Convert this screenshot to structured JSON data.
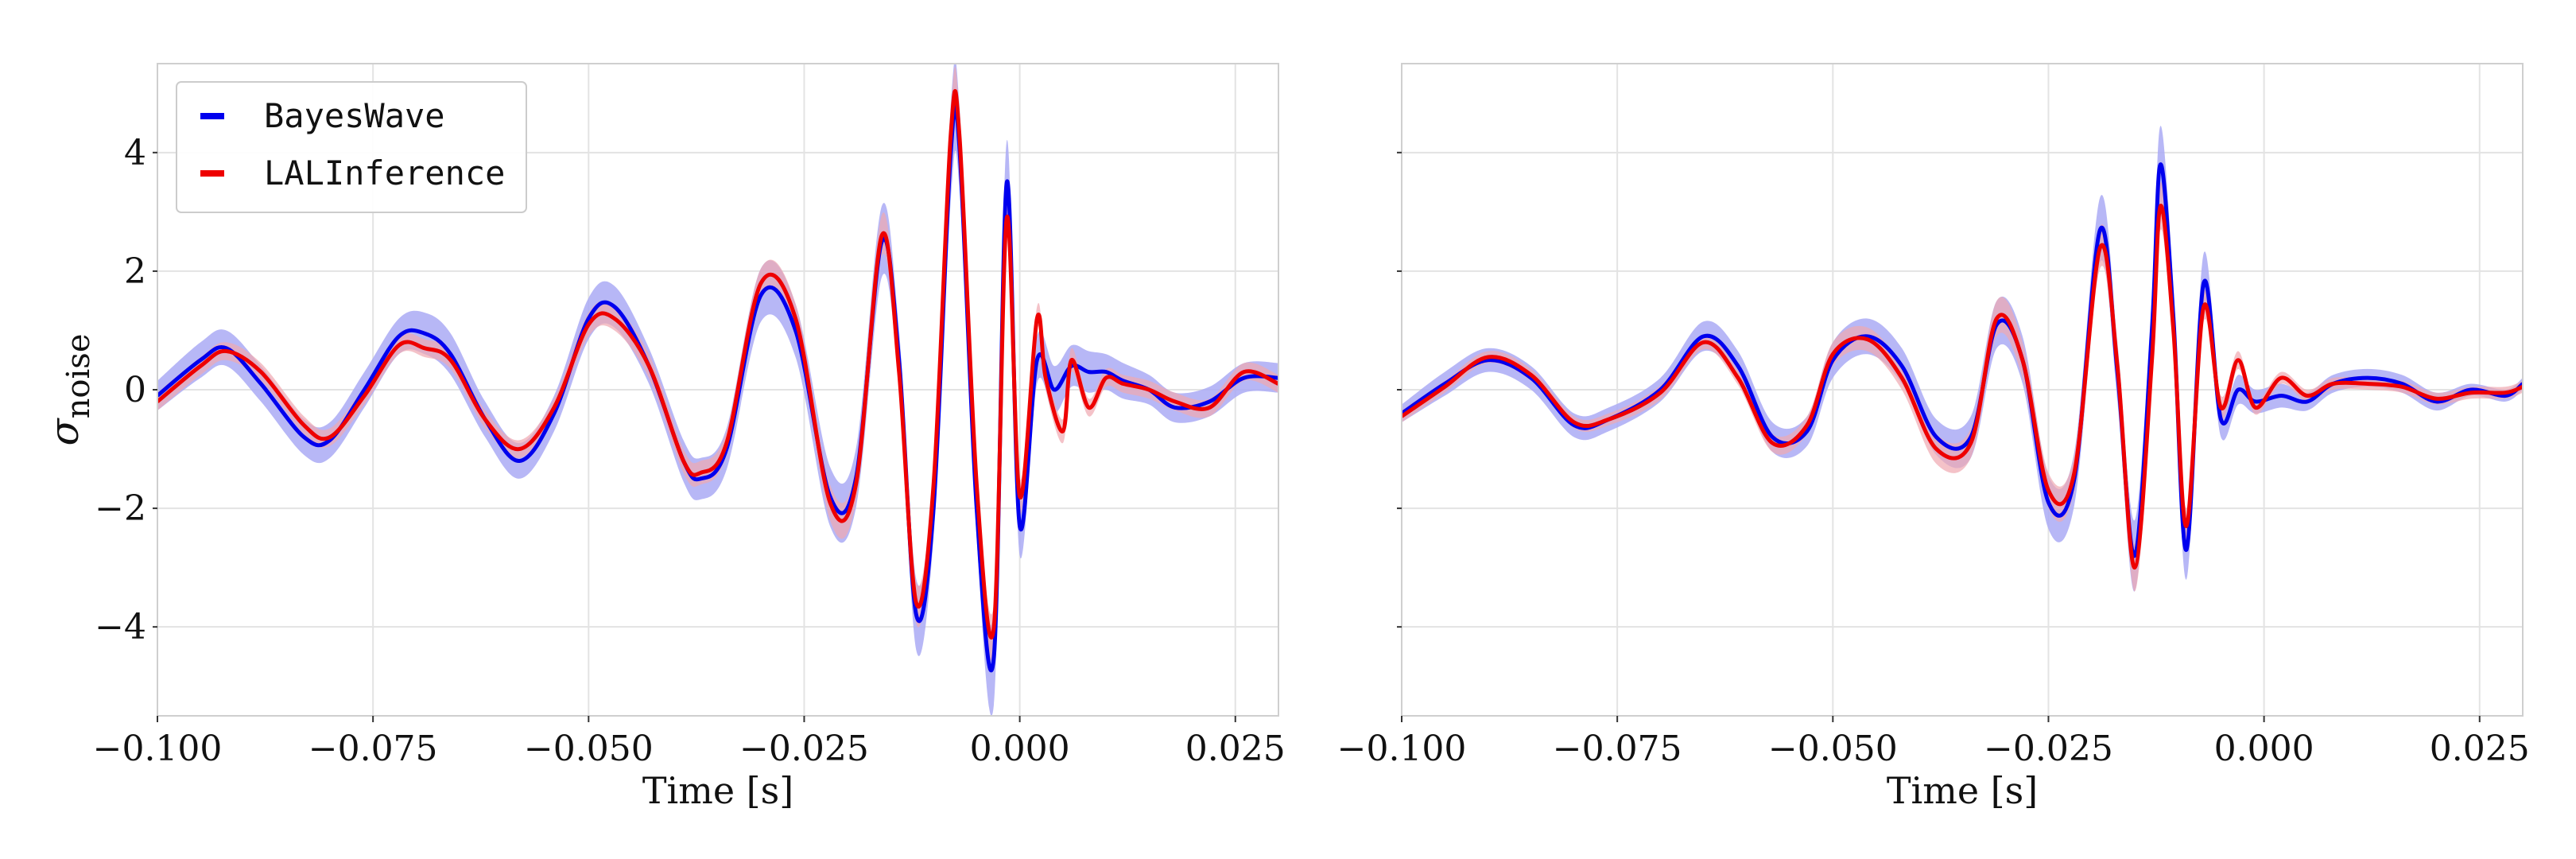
{
  "colors": {
    "bayeswave": "#0000ee",
    "bayeswave_band": "#aaaaf5",
    "lalinference": "#ee0000",
    "lalinference_band": "#f0a8b0"
  },
  "chart_data": [
    {
      "type": "line",
      "panel": "left",
      "xlabel": "Time [s]",
      "ylabel": "σnoise",
      "xlim": [
        -0.1,
        0.03
      ],
      "ylim": [
        -5.5,
        5.5
      ],
      "xticks": [
        -0.1,
        -0.075,
        -0.05,
        -0.025,
        0.0,
        0.025
      ],
      "xticklabels": [
        "−0.100",
        "−0.075",
        "−0.050",
        "−0.025",
        "0.000",
        "0.025"
      ],
      "yticks": [
        -4,
        -2,
        0,
        2,
        4
      ],
      "yticklabels": [
        "−4",
        "−2",
        "0",
        "2",
        "4"
      ],
      "grid": true,
      "legend": {
        "placement": "top-left",
        "entries": [
          "BayesWave",
          "LALInference"
        ]
      },
      "series": [
        {
          "name": "BayesWave",
          "x": [
            -0.1,
            -0.095,
            -0.092,
            -0.088,
            -0.083,
            -0.08,
            -0.076,
            -0.072,
            -0.069,
            -0.066,
            -0.062,
            -0.058,
            -0.054,
            -0.05,
            -0.047,
            -0.043,
            -0.039,
            -0.037,
            -0.034,
            -0.03,
            -0.026,
            -0.022,
            -0.019,
            -0.016,
            -0.014,
            -0.012,
            -0.01,
            -0.008,
            -0.007,
            -0.005,
            -0.003,
            -0.0015,
            0.0,
            0.002,
            0.004,
            0.006,
            0.008,
            0.01,
            0.012,
            0.015,
            0.018,
            0.022,
            0.026,
            0.03
          ],
          "y": [
            -0.1,
            0.5,
            0.7,
            0.1,
            -0.8,
            -0.85,
            0.0,
            0.9,
            0.95,
            0.6,
            -0.5,
            -1.2,
            -0.4,
            1.2,
            1.4,
            0.4,
            -1.2,
            -1.5,
            -1.0,
            1.6,
            1.0,
            -1.8,
            -1.5,
            2.5,
            0.5,
            -3.8,
            -2.0,
            4.0,
            4.1,
            -2.0,
            -4.5,
            3.5,
            -2.3,
            0.5,
            0.0,
            0.4,
            0.3,
            0.3,
            0.15,
            0.0,
            -0.3,
            -0.2,
            0.2,
            0.2
          ],
          "band_halfwidth": [
            0.25,
            0.3,
            0.3,
            0.3,
            0.3,
            0.3,
            0.3,
            0.3,
            0.35,
            0.35,
            0.3,
            0.3,
            0.3,
            0.35,
            0.35,
            0.3,
            0.35,
            0.35,
            0.35,
            0.45,
            0.45,
            0.5,
            0.5,
            0.6,
            0.5,
            0.6,
            0.5,
            0.8,
            0.7,
            0.5,
            0.8,
            0.7,
            0.5,
            0.4,
            0.4,
            0.35,
            0.35,
            0.3,
            0.3,
            0.25,
            0.25,
            0.25,
            0.25,
            0.25
          ]
        },
        {
          "name": "LALInference",
          "x": [
            -0.1,
            -0.095,
            -0.092,
            -0.088,
            -0.083,
            -0.08,
            -0.076,
            -0.072,
            -0.069,
            -0.066,
            -0.062,
            -0.058,
            -0.054,
            -0.05,
            -0.047,
            -0.043,
            -0.039,
            -0.037,
            -0.034,
            -0.03,
            -0.026,
            -0.022,
            -0.019,
            -0.016,
            -0.014,
            -0.012,
            -0.01,
            -0.008,
            -0.007,
            -0.005,
            -0.003,
            -0.0015,
            0.0,
            0.002,
            0.003,
            0.005,
            0.006,
            0.008,
            0.01,
            0.012,
            0.015,
            0.018,
            0.022,
            0.026,
            0.03
          ],
          "y": [
            -0.2,
            0.4,
            0.65,
            0.3,
            -0.6,
            -0.8,
            -0.1,
            0.75,
            0.7,
            0.5,
            -0.5,
            -1.0,
            -0.3,
            1.1,
            1.2,
            0.4,
            -1.2,
            -1.4,
            -0.9,
            1.8,
            1.2,
            -1.9,
            -1.6,
            2.6,
            0.3,
            -3.6,
            -1.6,
            4.3,
            4.3,
            -1.6,
            -4.0,
            2.9,
            -1.8,
            1.2,
            0.2,
            -0.7,
            0.5,
            -0.3,
            0.2,
            0.1,
            0.0,
            -0.2,
            -0.3,
            0.3,
            0.1
          ],
          "band_halfwidth": [
            0.15,
            0.15,
            0.15,
            0.15,
            0.15,
            0.15,
            0.15,
            0.15,
            0.15,
            0.15,
            0.15,
            0.15,
            0.15,
            0.2,
            0.2,
            0.2,
            0.2,
            0.2,
            0.2,
            0.25,
            0.25,
            0.3,
            0.3,
            0.35,
            0.3,
            0.35,
            0.3,
            0.4,
            0.4,
            0.3,
            0.4,
            0.35,
            0.3,
            0.2,
            0.2,
            0.2,
            0.2,
            0.15,
            0.15,
            0.15,
            0.15,
            0.15,
            0.15,
            0.15,
            0.15
          ]
        }
      ]
    },
    {
      "type": "line",
      "panel": "right",
      "xlabel": "Time [s]",
      "ylabel": "",
      "xlim": [
        -0.1,
        0.03
      ],
      "ylim": [
        -5.5,
        5.5
      ],
      "xticks": [
        -0.1,
        -0.075,
        -0.05,
        -0.025,
        0.0,
        0.025
      ],
      "xticklabels": [
        "−0.100",
        "−0.075",
        "−0.050",
        "−0.025",
        "0.000",
        "0.025"
      ],
      "yticks": [
        -4,
        -2,
        0,
        2,
        4
      ],
      "yticklabels": [],
      "grid": true,
      "series": [
        {
          "name": "BayesWave",
          "x": [
            -0.1,
            -0.095,
            -0.09,
            -0.085,
            -0.08,
            -0.076,
            -0.07,
            -0.065,
            -0.061,
            -0.057,
            -0.053,
            -0.05,
            -0.046,
            -0.042,
            -0.038,
            -0.034,
            -0.031,
            -0.028,
            -0.025,
            -0.022,
            -0.019,
            -0.017,
            -0.015,
            -0.013,
            -0.012,
            -0.0105,
            -0.009,
            -0.007,
            -0.005,
            -0.003,
            -0.001,
            0.002,
            0.005,
            0.008,
            0.012,
            0.016,
            0.02,
            0.024,
            0.028,
            0.03
          ],
          "y": [
            -0.4,
            0.1,
            0.5,
            0.2,
            -0.6,
            -0.5,
            0.0,
            0.9,
            0.4,
            -0.8,
            -0.7,
            0.5,
            0.9,
            0.4,
            -0.8,
            -0.8,
            1.1,
            0.5,
            -1.9,
            -1.5,
            2.7,
            0.3,
            -2.8,
            1.0,
            3.8,
            1.2,
            -2.7,
            1.8,
            -0.5,
            0.0,
            -0.2,
            -0.1,
            -0.2,
            0.1,
            0.2,
            0.1,
            -0.2,
            0.0,
            -0.1,
            0.1
          ],
          "band_halfwidth": [
            0.15,
            0.2,
            0.2,
            0.2,
            0.2,
            0.2,
            0.2,
            0.25,
            0.25,
            0.25,
            0.25,
            0.3,
            0.3,
            0.3,
            0.3,
            0.35,
            0.4,
            0.4,
            0.45,
            0.45,
            0.55,
            0.5,
            0.6,
            0.6,
            0.65,
            0.55,
            0.5,
            0.5,
            0.3,
            0.25,
            0.2,
            0.2,
            0.15,
            0.15,
            0.15,
            0.15,
            0.15,
            0.1,
            0.1,
            0.1
          ]
        },
        {
          "name": "LALInference",
          "x": [
            -0.1,
            -0.095,
            -0.09,
            -0.085,
            -0.08,
            -0.076,
            -0.07,
            -0.065,
            -0.061,
            -0.057,
            -0.053,
            -0.05,
            -0.046,
            -0.042,
            -0.038,
            -0.034,
            -0.031,
            -0.028,
            -0.025,
            -0.022,
            -0.019,
            -0.017,
            -0.015,
            -0.013,
            -0.012,
            -0.0105,
            -0.009,
            -0.007,
            -0.005,
            -0.003,
            -0.001,
            0.002,
            0.005,
            0.008,
            0.012,
            0.016,
            0.02,
            0.024,
            0.028,
            0.03
          ],
          "y": [
            -0.45,
            0.05,
            0.55,
            0.25,
            -0.55,
            -0.5,
            -0.05,
            0.8,
            0.2,
            -0.9,
            -0.6,
            0.6,
            0.85,
            0.2,
            -1.0,
            -0.9,
            1.2,
            0.5,
            -1.7,
            -1.4,
            2.4,
            0.4,
            -3.0,
            0.5,
            3.1,
            1.0,
            -2.3,
            1.4,
            -0.3,
            0.5,
            -0.3,
            0.2,
            -0.1,
            0.1,
            0.1,
            0.05,
            -0.15,
            -0.05,
            -0.05,
            0.05
          ],
          "band_halfwidth": [
            0.1,
            0.1,
            0.1,
            0.1,
            0.1,
            0.1,
            0.12,
            0.12,
            0.12,
            0.15,
            0.15,
            0.2,
            0.2,
            0.2,
            0.25,
            0.25,
            0.3,
            0.3,
            0.3,
            0.3,
            0.35,
            0.35,
            0.4,
            0.4,
            0.4,
            0.35,
            0.3,
            0.25,
            0.2,
            0.15,
            0.12,
            0.1,
            0.1,
            0.1,
            0.1,
            0.1,
            0.1,
            0.1,
            0.1,
            0.1
          ]
        }
      ]
    }
  ]
}
